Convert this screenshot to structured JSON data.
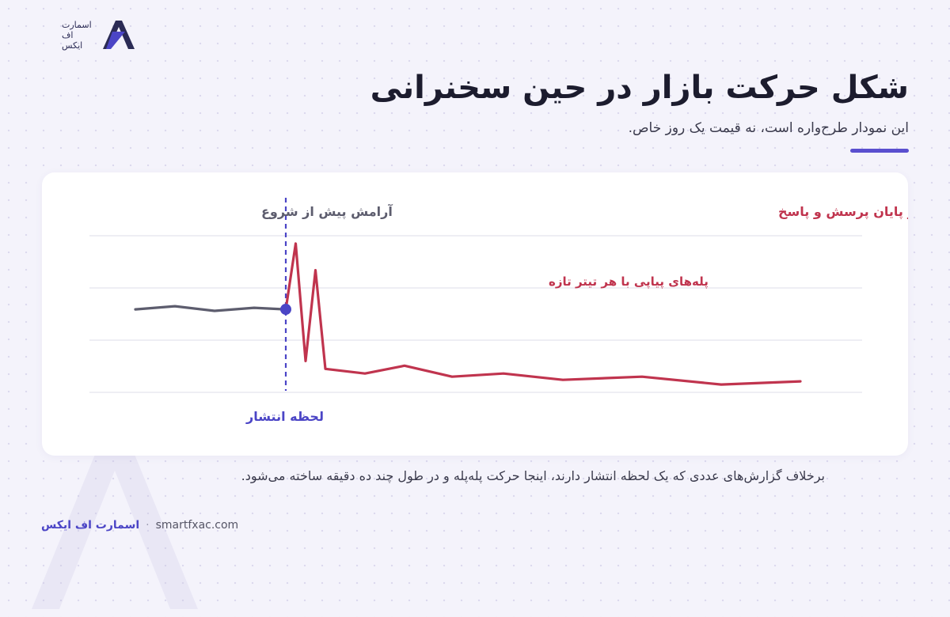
{
  "logo": {
    "lines": [
      "اسمارت",
      "اف",
      "ایکس"
    ]
  },
  "header": {
    "title": "شکل حرکت بازار در حین سخنرانی",
    "subtitle": "این نمودار طرح‌واره است، نه قیمت یک روز خاص."
  },
  "chart_data": {
    "type": "line",
    "title": "",
    "xlabel": "",
    "ylabel": "",
    "grid": true,
    "gridlines": 4,
    "ylim": [
      0,
      100
    ],
    "series": [
      {
        "name": "",
        "color": "#5d5d6e",
        "x": [
          0,
          10,
          20,
          30,
          38
        ],
        "values": [
          53,
          55,
          52,
          54,
          53
        ]
      },
      {
        "name": "",
        "color": "#c0344e",
        "x": [
          38,
          40.5,
          43,
          45.5,
          48,
          58,
          68,
          80,
          93,
          108,
          128,
          148,
          168
        ],
        "values": [
          53,
          95,
          20,
          78,
          15,
          12,
          17,
          10,
          12,
          8,
          10,
          5,
          7
        ]
      }
    ],
    "release_marker": {
      "x": 38,
      "color": "#4b45c6"
    },
    "annotations": {
      "calm": "آرامش پیش از شروع",
      "trend": "روند واقعی، پس از پایان پرسش و پاسخ",
      "steps": "پله‌های پیاپی با هر تیتر تازه",
      "release": "لحظه انتشار"
    }
  },
  "footnote": "برخلاف گزارش‌های عددی که یک لحظه انتشار دارند، اینجا حرکت پله‌پله و در طول چند ده دقیقه ساخته می‌شود.",
  "footer": {
    "brand": "اسمارت اف ایکس",
    "separator": "·",
    "url": "smartfxac.com"
  }
}
